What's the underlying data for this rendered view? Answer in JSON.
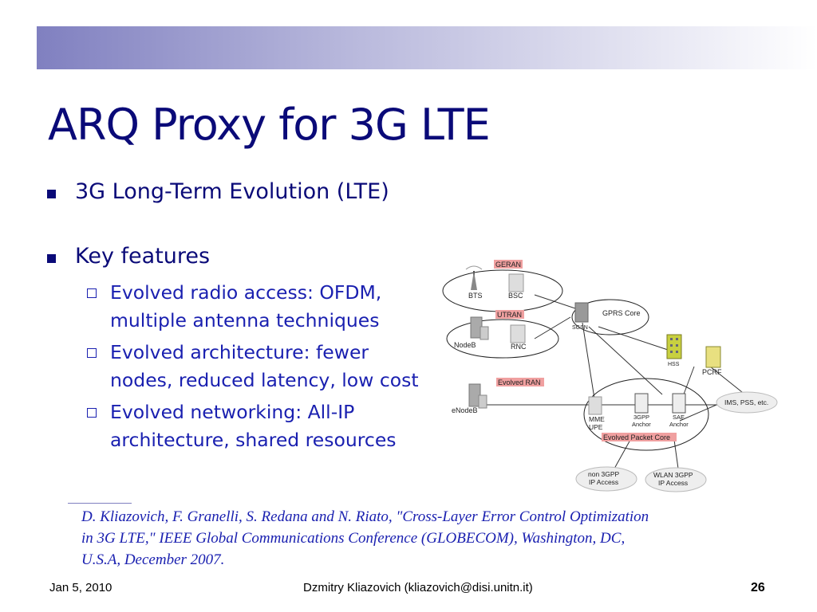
{
  "slide": {
    "title": "ARQ Proxy for 3G LTE",
    "bullets": [
      {
        "text": "3G Long-Term Evolution (LTE)"
      },
      {
        "text": "Key features"
      }
    ],
    "sub_bullets": [
      {
        "lines": [
          "Evolved radio access: OFDM,",
          "multiple antenna techniques"
        ]
      },
      {
        "lines": [
          "Evolved architecture: fewer",
          "nodes, reduced latency, low cost"
        ]
      },
      {
        "lines": [
          "Evolved networking: All-IP",
          "architecture, shared resources"
        ]
      }
    ]
  },
  "diagram": {
    "group_labels": {
      "geran": "GERAN",
      "utran": "UTRAN",
      "evolved_ran": "Evolved RAN",
      "evolved_packet_core": "Evolved Packet Core"
    },
    "nodes": {
      "bts": "BTS",
      "bsc": "BSC",
      "nodeb": "NodeB",
      "rnc": "RNC",
      "enodeb": "eNodeB",
      "sgsn": "SGSN",
      "gprs_core": "GPRS Core",
      "hss": "HSS",
      "pcrf": "PCRF",
      "ims": "IMS, PSS, etc.",
      "mme_upe": [
        "MME",
        "UPE"
      ],
      "anchor_3gpp": [
        "3GPP",
        "Anchor"
      ],
      "anchor_sae": [
        "SAE",
        "Anchor"
      ],
      "non_3gpp": [
        "non 3GPP",
        "IP Access"
      ],
      "wlan_3gpp": [
        "WLAN 3GPP",
        "IP Access"
      ]
    },
    "colors": {
      "label_highlight": "#f0a0a0",
      "hss_yellow": "#c8d040",
      "pcrf_yellow": "#e8e080"
    }
  },
  "reference": {
    "lines": [
      "D. Kliazovich, F. Granelli, S. Redana and N. Riato, \"Cross-Layer Error Control Optimization",
      "in 3G LTE,\" IEEE Global Communications Conference (GLOBECOM), Washington, DC,",
      "U.S.A, December 2007."
    ]
  },
  "footer": {
    "date": "Jan 5, 2010",
    "author": "Dzmitry Kliazovich (kliazovich@disi.unitn.it)",
    "page": "26"
  },
  "theme": {
    "title_color": "#0a0a78",
    "text_color": "#1a20b0"
  }
}
